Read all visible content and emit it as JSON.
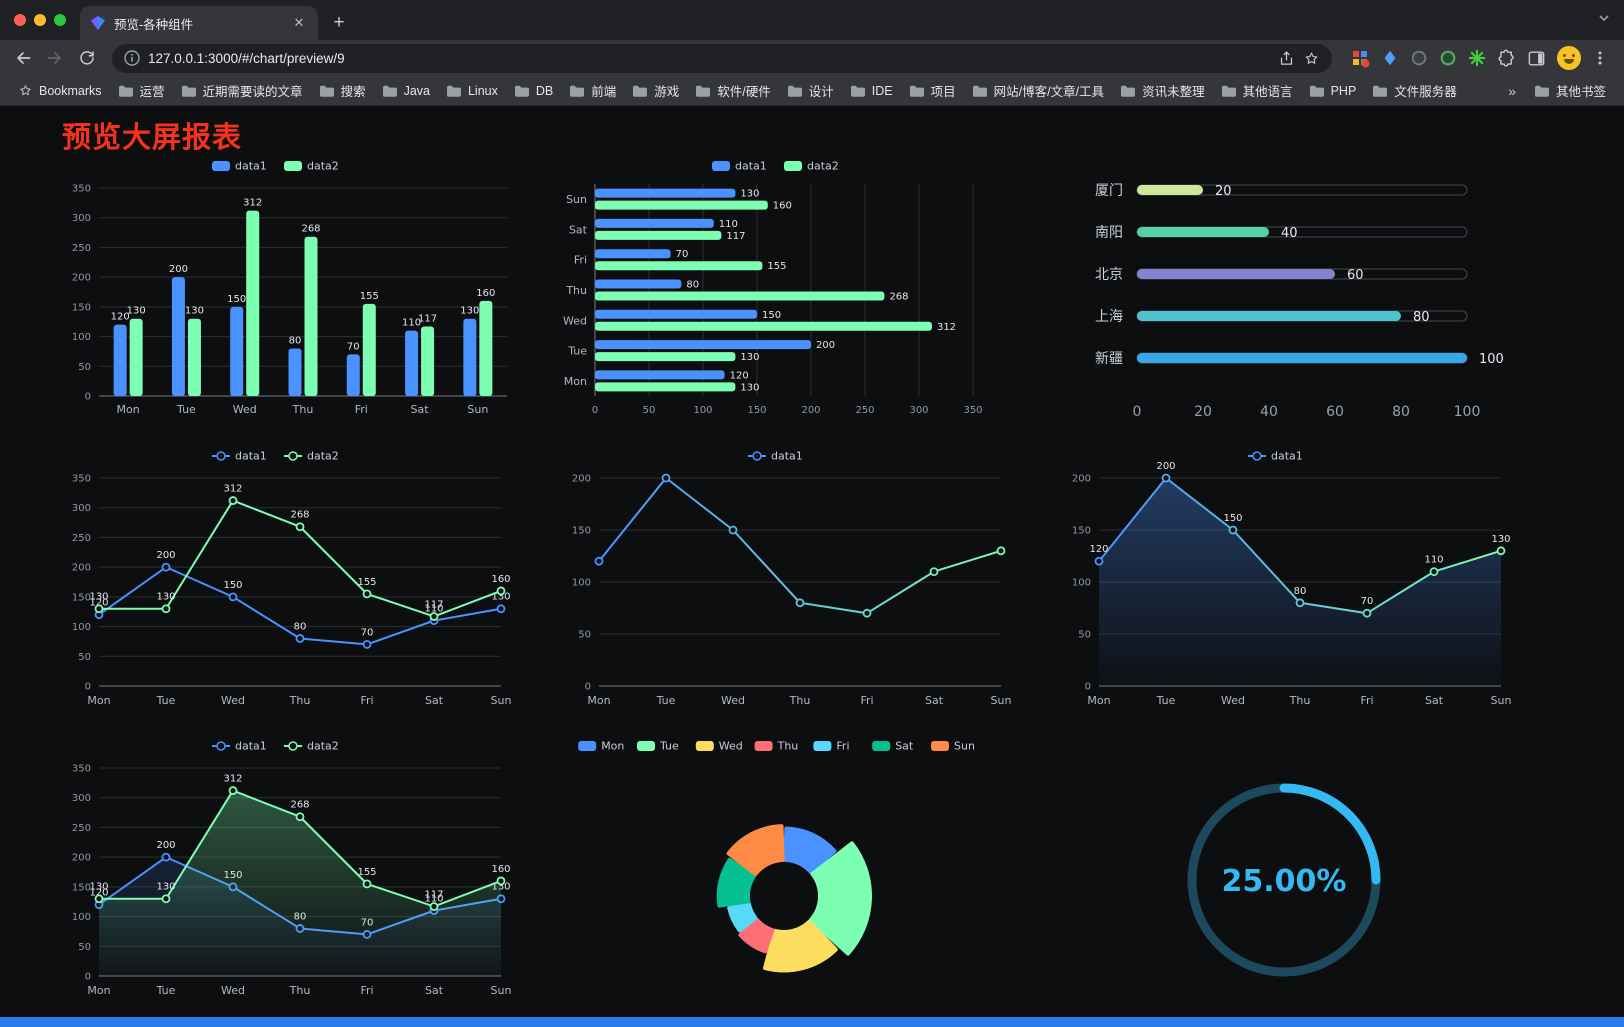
{
  "browser": {
    "tab_title": "预览-各种组件",
    "url": "127.0.0.1:3000/#/chart/preview/9",
    "new_tab_label": "+",
    "close_tab_label": "✕",
    "bookmarks": {
      "root_label": "Bookmarks",
      "items": [
        "运营",
        "近期需要读的文章",
        "搜索",
        "Java",
        "Linux",
        "DB",
        "前端",
        "游戏",
        "软件/硬件",
        "设计",
        "IDE",
        "项目",
        "网站/博客/文章/工具",
        "资讯未整理",
        "其他语言",
        "PHP",
        "文件服务器"
      ],
      "overflow_chevron": "»",
      "other_bookmarks_label": "其他书签"
    }
  },
  "page": {
    "title": "预览大屏报表"
  },
  "chart_data": [
    {
      "type": "bar",
      "categories": [
        "Mon",
        "Tue",
        "Wed",
        "Thu",
        "Fri",
        "Sat",
        "Sun"
      ],
      "series": [
        {
          "name": "data1",
          "color": "#4992ff",
          "values": [
            120,
            200,
            150,
            80,
            70,
            110,
            130
          ]
        },
        {
          "name": "data2",
          "color": "#7cffb2",
          "values": [
            130,
            130,
            312,
            268,
            155,
            117,
            160
          ]
        }
      ],
      "ylim": [
        0,
        350
      ],
      "yticks": [
        0,
        50,
        100,
        150,
        200,
        250,
        300,
        350
      ],
      "legend_position": "top"
    },
    {
      "type": "bar-horizontal",
      "categories": [
        "Mon",
        "Tue",
        "Wed",
        "Thu",
        "Fri",
        "Sat",
        "Sun"
      ],
      "series": [
        {
          "name": "data1",
          "color": "#4992ff",
          "values": [
            120,
            200,
            150,
            80,
            70,
            110,
            130
          ]
        },
        {
          "name": "data2",
          "color": "#7cffb2",
          "values": [
            130,
            130,
            312,
            268,
            155,
            117,
            160
          ]
        }
      ],
      "xlim": [
        0,
        350
      ],
      "xticks": [
        0,
        50,
        100,
        150,
        200,
        250,
        300,
        350
      ],
      "legend_position": "top"
    },
    {
      "type": "progress",
      "max": 100,
      "xticks": [
        0,
        20,
        40,
        60,
        80,
        100
      ],
      "items": [
        {
          "label": "厦门",
          "value": 20,
          "color": "#cde79c"
        },
        {
          "label": "南阳",
          "value": 40,
          "color": "#54d2a5"
        },
        {
          "label": "北京",
          "value": 60,
          "color": "#8583d1"
        },
        {
          "label": "上海",
          "value": 80,
          "color": "#4ec3cd"
        },
        {
          "label": "新疆",
          "value": 100,
          "color": "#38a7e8"
        }
      ]
    },
    {
      "type": "line",
      "categories": [
        "Mon",
        "Tue",
        "Wed",
        "Thu",
        "Fri",
        "Sat",
        "Sun"
      ],
      "ylim": [
        0,
        350
      ],
      "yticks": [
        0,
        50,
        100,
        150,
        200,
        250,
        300,
        350
      ],
      "series": [
        {
          "name": "data1",
          "color": "#4992ff",
          "values": [
            120,
            200,
            150,
            80,
            70,
            110,
            130
          ],
          "labels": true
        },
        {
          "name": "data2",
          "color": "#7cffb2",
          "values": [
            130,
            130,
            312,
            268,
            155,
            117,
            160
          ],
          "labels": true
        }
      ]
    },
    {
      "type": "line",
      "categories": [
        "Mon",
        "Tue",
        "Wed",
        "Thu",
        "Fri",
        "Sat",
        "Sun"
      ],
      "ylim": [
        0,
        200
      ],
      "yticks": [
        0,
        50,
        100,
        150,
        200
      ],
      "series": [
        {
          "name": "data1",
          "color": "#4992ff",
          "gradient": [
            "#4992ff",
            "#7cffb2"
          ],
          "values": [
            120,
            200,
            150,
            80,
            70,
            110,
            130
          ],
          "labels": false
        }
      ]
    },
    {
      "type": "line",
      "categories": [
        "Mon",
        "Tue",
        "Wed",
        "Thu",
        "Fri",
        "Sat",
        "Sun"
      ],
      "ylim": [
        0,
        200
      ],
      "yticks": [
        0,
        50,
        100,
        150,
        200
      ],
      "series": [
        {
          "name": "data1",
          "color": "#4992ff",
          "gradient": [
            "#4992ff",
            "#7cffb2"
          ],
          "values": [
            120,
            200,
            150,
            80,
            70,
            110,
            130
          ],
          "labels": true,
          "area": 0.35
        }
      ]
    },
    {
      "type": "line",
      "categories": [
        "Mon",
        "Tue",
        "Wed",
        "Thu",
        "Fri",
        "Sat",
        "Sun"
      ],
      "ylim": [
        0,
        350
      ],
      "yticks": [
        0,
        50,
        100,
        150,
        200,
        250,
        300,
        350
      ],
      "series": [
        {
          "name": "data1",
          "color": "#4992ff",
          "values": [
            120,
            200,
            150,
            80,
            70,
            110,
            130
          ],
          "labels": true,
          "area": 0.15
        },
        {
          "name": "data2",
          "color": "#7cffb2",
          "values": [
            130,
            130,
            312,
            268,
            155,
            117,
            160
          ],
          "labels": true,
          "area": 0.3
        }
      ]
    },
    {
      "type": "pie-rose",
      "items": [
        {
          "name": "Mon",
          "value": 120,
          "color": "#4992ff"
        },
        {
          "name": "Tue",
          "value": 200,
          "color": "#7cffb2"
        },
        {
          "name": "Wed",
          "value": 150,
          "color": "#fddd60"
        },
        {
          "name": "Thu",
          "value": 80,
          "color": "#ff6e76"
        },
        {
          "name": "Fri",
          "value": 70,
          "color": "#58d9f9"
        },
        {
          "name": "Sat",
          "value": 110,
          "color": "#05c091"
        },
        {
          "name": "Sun",
          "value": 130,
          "color": "#ff8a45"
        }
      ]
    },
    {
      "type": "gauge",
      "value": 25,
      "display": "25.00%",
      "color": "#35b9f2",
      "track_color": "#1c4a5c"
    }
  ]
}
